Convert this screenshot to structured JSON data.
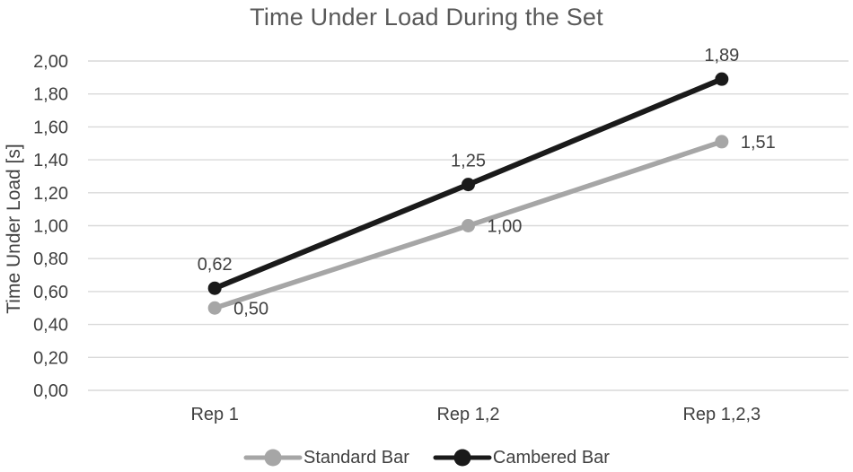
{
  "chart_data": {
    "type": "line",
    "title": "Time Under Load During the Set",
    "xlabel": "",
    "ylabel": "Time Under Load [s]",
    "categories": [
      "Rep 1",
      "Rep 1,2",
      "Rep 1,2,3"
    ],
    "series": [
      {
        "name": "Standard Bar",
        "color": "#a6a6a6",
        "values": [
          0.5,
          1.0,
          1.51
        ],
        "point_labels": [
          "0,50",
          "1,00",
          "1,51"
        ],
        "label_position": "right",
        "line_width": 5.5
      },
      {
        "name": "Cambered Bar",
        "color": "#1a1a1a",
        "values": [
          0.62,
          1.25,
          1.89
        ],
        "point_labels": [
          "0,62",
          "1,25",
          "1,89"
        ],
        "label_position": "above",
        "line_width": 6
      }
    ],
    "ylim": [
      0,
      2.0
    ],
    "ytick_step": 0.2,
    "ytick_labels": [
      "0,00",
      "0,20",
      "0,40",
      "0,60",
      "0,80",
      "1,00",
      "1,20",
      "1,40",
      "1,60",
      "1,80",
      "2,00"
    ],
    "grid": true,
    "legend_position": "bottom",
    "colors": {
      "grid": "#d9d9d9",
      "title_text": "#595959",
      "axis_text": "#404040",
      "label_text": "#404040",
      "background": "#ffffff"
    }
  }
}
